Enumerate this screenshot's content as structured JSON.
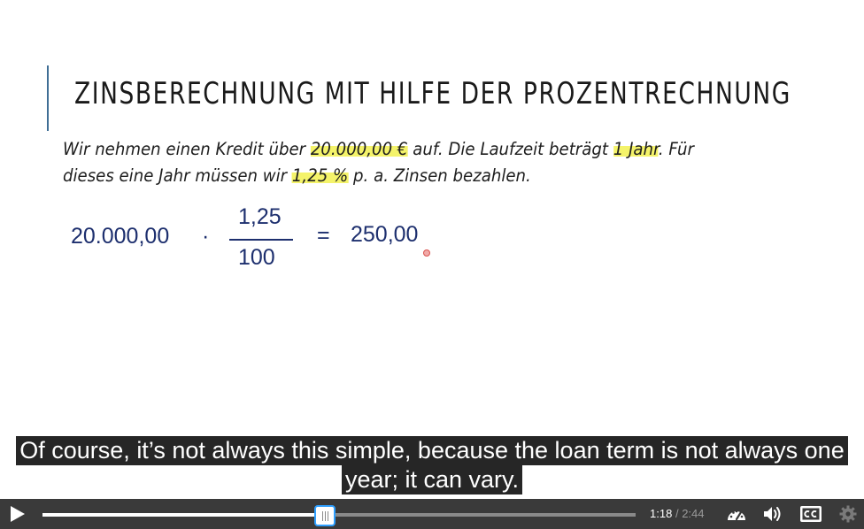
{
  "slide": {
    "title": "ZINSBERECHNUNG MIT HILFE DER PROZENTRECHNUNG",
    "text": {
      "line1": {
        "a": "Wir nehmen einen Kredit über ",
        "hl_amount": "20.000,00 €",
        "b": " auf. Die Laufzeit beträgt ",
        "hl_term": "1 Jahr",
        "c": ". Für"
      },
      "line2": {
        "a": "dieses eine Jahr müssen wir ",
        "hl_rate": "1,25 %",
        "b": " p. a. Zinsen bezahlen."
      }
    },
    "formula": {
      "left": "20.000,00",
      "dot": "·",
      "numerator": "1,25",
      "denominator": "100",
      "equals": "=",
      "result": "250,00"
    },
    "accent_color": "#3f6e95",
    "highlight_color": "#f4f36a",
    "formula_color": "#1d2f6e"
  },
  "captions": {
    "line1": "Of course, it’s not always this simple, because the loan term is not always one",
    "line2": "year; it can vary."
  },
  "player": {
    "current_time": "1:18",
    "separator": "/",
    "duration": "2:44",
    "progress_fraction": 0.4756,
    "icons": {
      "play": "play-icon",
      "speed": "speed-gauge-icon",
      "volume": "volume-icon",
      "captions": "cc-icon",
      "settings": "gear-icon"
    }
  }
}
